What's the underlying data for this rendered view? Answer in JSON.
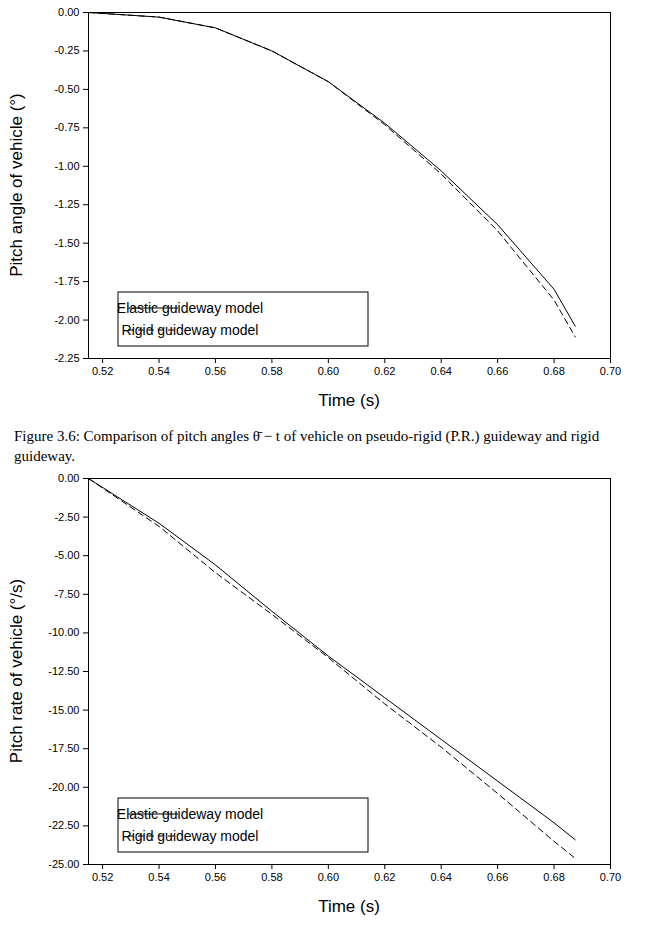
{
  "chart_data": [
    {
      "type": "line",
      "caption": "Figure 3.6: Comparison of pitch angles θ̄ − t of vehicle on pseudo-rigid (P.R.) guideway and rigid guideway.",
      "x_label": "Time (s)",
      "y_label": "Pitch angle of vehicle (°)",
      "x": [
        0.515,
        0.54,
        0.56,
        0.58,
        0.6,
        0.62,
        0.64,
        0.66,
        0.68,
        0.6875
      ],
      "series": [
        {
          "name": "Elastic guideway model",
          "color": "#000000",
          "line_style": "solid",
          "values": [
            0,
            -0.03,
            -0.1,
            -0.25,
            -0.45,
            -0.72,
            -1.03,
            -1.38,
            -1.8,
            -2.04
          ]
        },
        {
          "name": "Rigid guideway model",
          "color": "#000000",
          "line_style": "dashed",
          "values": [
            0,
            -0.03,
            -0.1,
            -0.25,
            -0.45,
            -0.73,
            -1.05,
            -1.42,
            -1.87,
            -2.11
          ]
        }
      ],
      "xlim": [
        0.515,
        0.7
      ],
      "xticks": [
        0.52,
        0.54,
        0.56,
        0.58,
        {
          "value": 0.6,
          "label": "0.60"
        },
        0.62,
        0.64,
        0.66,
        0.68,
        {
          "value": 0.7,
          "label": "0.70"
        }
      ],
      "ylim": [
        -2.25,
        0
      ],
      "yticks": [
        {
          "value": 0,
          "label": "0.00"
        },
        -0.25,
        {
          "value": -0.5,
          "label": "-0.50"
        },
        {
          "value": -0.75,
          "label": "-0.75"
        },
        {
          "value": -1,
          "label": "-1.00"
        },
        -1.25,
        {
          "value": -1.5,
          "label": "-1.50"
        },
        -1.75,
        {
          "value": -2,
          "label": "-2.00"
        },
        -2.25
      ],
      "legend": "bottom-left",
      "grid": false
    },
    {
      "type": "line",
      "x_label": "Time (s)",
      "y_label": "Pitch rate of vehicle (°/s)",
      "x": [
        0.515,
        0.54,
        0.56,
        0.58,
        0.6,
        0.62,
        0.64,
        0.66,
        0.68,
        0.6875
      ],
      "series": [
        {
          "name": "Elastic guideway model",
          "color": "#000000",
          "line_style": "solid",
          "values": [
            0,
            -2.9,
            -5.6,
            -8.6,
            -11.5,
            -14.2,
            -16.9,
            -19.6,
            -22.3,
            -23.4
          ]
        },
        {
          "name": "Rigid guideway model",
          "color": "#000000",
          "line_style": "dashed",
          "values": [
            0,
            -3.1,
            -6.1,
            -8.8,
            -11.6,
            -14.6,
            -17.4,
            -20.4,
            -23.5,
            -24.6
          ]
        }
      ],
      "xlim": [
        0.515,
        0.7
      ],
      "xticks": [
        0.52,
        0.54,
        0.56,
        0.58,
        {
          "value": 0.6,
          "label": "0.60"
        },
        0.62,
        0.64,
        0.66,
        0.68,
        {
          "value": 0.7,
          "label": "0.70"
        }
      ],
      "ylim": [
        -25,
        0
      ],
      "yticks": [
        {
          "value": 0,
          "label": "0.00"
        },
        {
          "value": -2.5,
          "label": "-2.50"
        },
        {
          "value": -5,
          "label": "-5.00"
        },
        {
          "value": -7.5,
          "label": "-7.50"
        },
        {
          "value": -10,
          "label": "-10.00"
        },
        {
          "value": -12.5,
          "label": "-12.50"
        },
        {
          "value": -15,
          "label": "-15.00"
        },
        {
          "value": -17.5,
          "label": "-17.50"
        },
        {
          "value": -20,
          "label": "-20.00"
        },
        {
          "value": -22.5,
          "label": "-22.50"
        },
        {
          "value": -25,
          "label": "-25.00"
        }
      ],
      "legend": "bottom-left",
      "grid": false
    }
  ]
}
